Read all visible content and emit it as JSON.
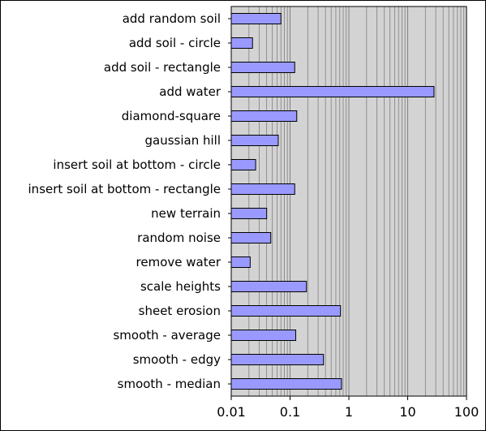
{
  "chart_data": {
    "type": "bar",
    "orientation": "horizontal",
    "x_scale": "log",
    "xlim": [
      0.01,
      100
    ],
    "x_ticks": [
      "0.01",
      "0.1",
      "1",
      "10",
      "100"
    ],
    "grid": true,
    "legend": "none",
    "colors": {
      "bar_fill": "#9999ff",
      "bar_stroke": "#000000",
      "plot_background": "#d3d3d3",
      "grid_line": "#808080",
      "frame": "#000000"
    },
    "categories": [
      "add random soil",
      "add soil - circle",
      "add soil - rectangle",
      "add water",
      "diamond-square",
      "gaussian hill",
      "insert soil at bottom - circle",
      "insert soil at bottom - rectangle",
      "new terrain",
      "random noise",
      "remove water",
      "scale heights",
      "sheet erosion",
      "smooth - average",
      "smooth - edgy",
      "smooth - median"
    ],
    "values": [
      0.07,
      0.023,
      0.12,
      28,
      0.13,
      0.063,
      0.026,
      0.12,
      0.04,
      0.047,
      0.021,
      0.19,
      0.72,
      0.125,
      0.37,
      0.75
    ],
    "title": "",
    "xlabel": "",
    "ylabel": ""
  }
}
